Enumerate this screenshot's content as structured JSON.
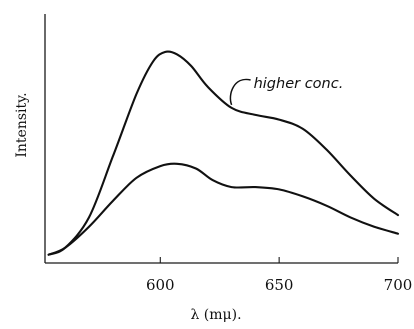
{
  "chart_data": {
    "type": "line",
    "title": "",
    "xlabel": "λ (mμ).",
    "ylabel": "Intensity.",
    "xlim": [
      550,
      700
    ],
    "ylim": [
      0,
      100
    ],
    "x_ticks": [
      600,
      650,
      700
    ],
    "grid": false,
    "legend": "none",
    "series": [
      {
        "x": [
          553,
          560,
          570,
          580,
          590,
          597,
          602,
          607,
          613,
          620,
          630,
          640,
          650,
          660,
          670,
          680,
          690,
          700
        ],
        "y": [
          1,
          4,
          17,
          43,
          70,
          84,
          88,
          87,
          82,
          73,
          64,
          61,
          59,
          55,
          46,
          35,
          25,
          18
        ]
      },
      {
        "x": [
          553,
          560,
          570,
          580,
          590,
          600,
          607,
          615,
          622,
          630,
          640,
          650,
          660,
          670,
          680,
          690,
          700
        ],
        "y": [
          1,
          4,
          13,
          24,
          34,
          39,
          40,
          38,
          33,
          30,
          30,
          29,
          26,
          22,
          17,
          13,
          10
        ]
      }
    ],
    "annotations": [
      {
        "text": "higher conc.",
        "series_index": 0,
        "x": 630
      }
    ]
  }
}
